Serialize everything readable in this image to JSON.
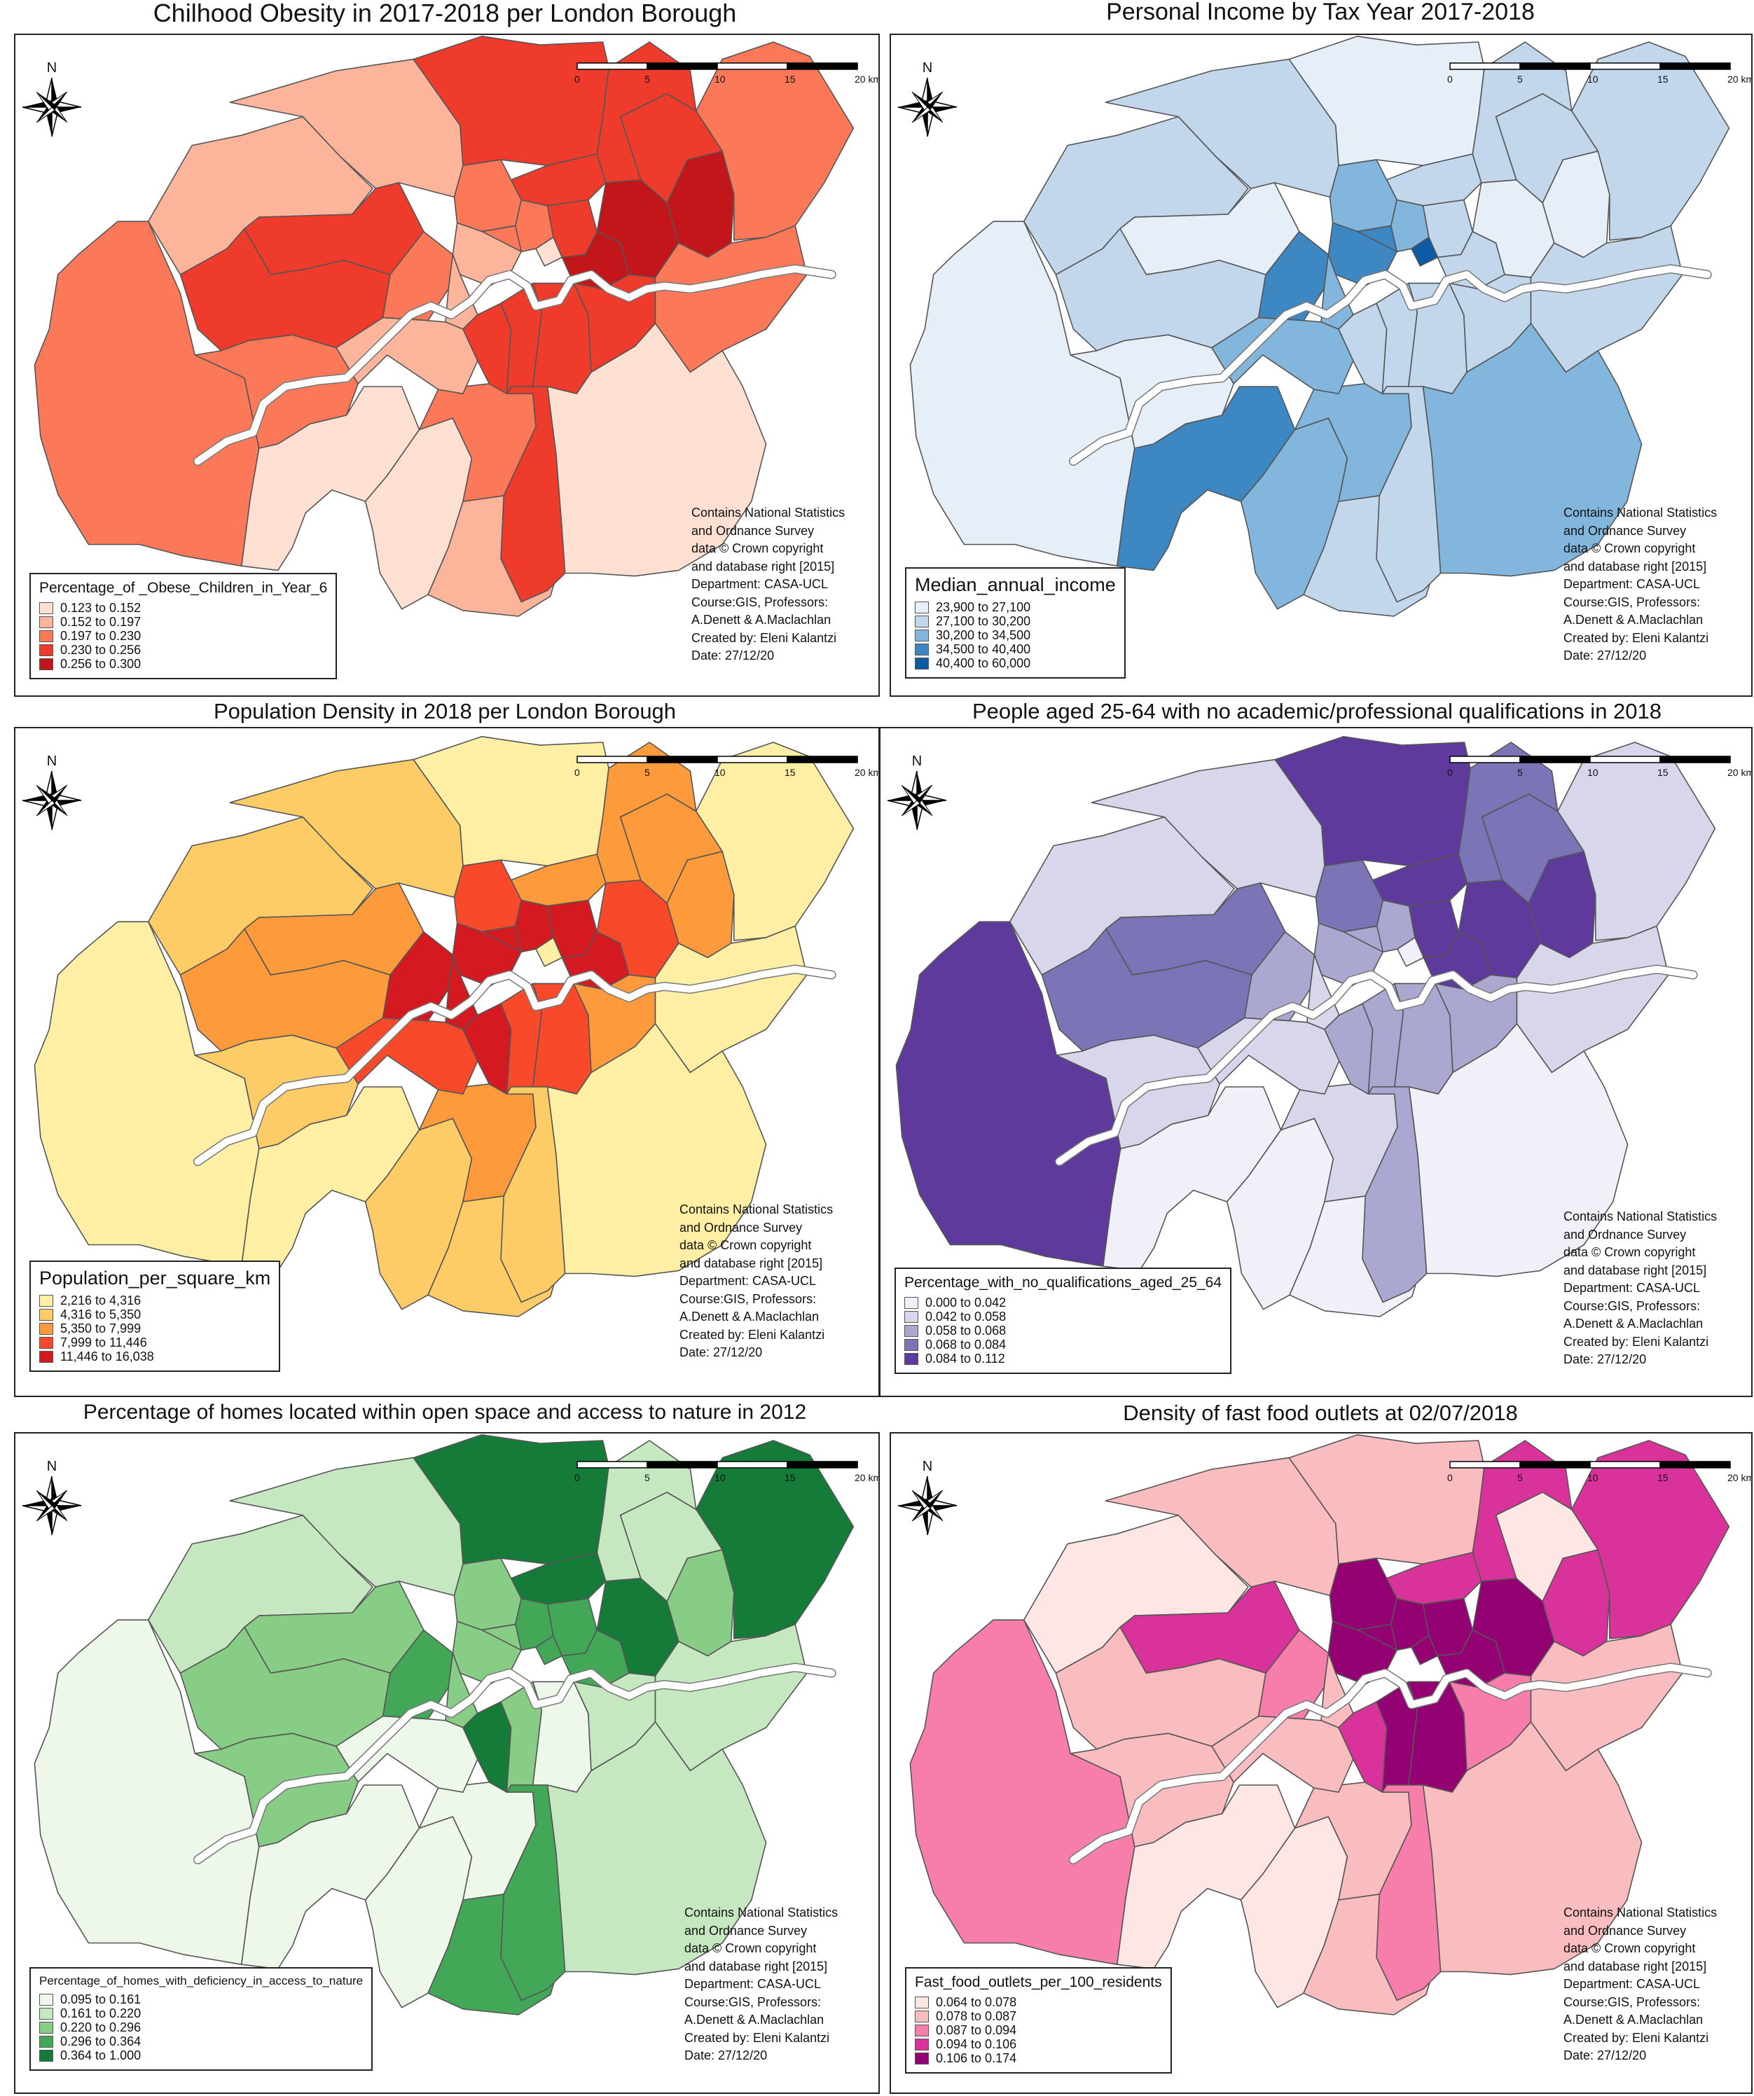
{
  "north_label": "N",
  "scale_labels": [
    "0",
    "5",
    "10",
    "15",
    "20 km"
  ],
  "credits": [
    "Contains National Statistics",
    "and Ordnance Survey",
    "data © Crown copyright",
    "and database right [2015]",
    "Department: CASA-UCL",
    "Course:GIS, Professors:",
    "A.Denett & A.Maclachlan",
    "Created by: Eleni Kalantzi",
    "Date: 27/12/20"
  ],
  "maps": [
    {
      "id": "obesity",
      "title": "Chilhood Obesity in 2017-2018 per London Borough",
      "legend_title": "Percentage_of _Obese_Children_in_Year_6",
      "classes": [
        {
          "label": "0.123 to 0.152",
          "color": "#fee0d2"
        },
        {
          "label": "0.152 to 0.197",
          "color": "#fcb49a"
        },
        {
          "label": "0.197 to 0.230",
          "color": "#fb7858"
        },
        {
          "label": "0.230 to 0.256",
          "color": "#ee3b2c"
        },
        {
          "label": "0.256 to 0.300",
          "color": "#c2161b"
        }
      ]
    },
    {
      "id": "income",
      "title": "Personal Income by Tax Year 2017-2018",
      "legend_title": "Median_annual_income",
      "classes": [
        {
          "label": "23,900 to 27,100",
          "color": "#e6eef8"
        },
        {
          "label": "27,100 to 30,200",
          "color": "#c3d7ec"
        },
        {
          "label": "30,200 to 34,500",
          "color": "#82b6dc"
        },
        {
          "label": "34,500 to 40,400",
          "color": "#3d87c3"
        },
        {
          "label": "40,400 to 60,000",
          "color": "#0d5aa5"
        }
      ]
    },
    {
      "id": "density",
      "title": "Population Density in 2018 per London Borough",
      "legend_title": "Population_per_square_km",
      "classes": [
        {
          "label": "2,216 to 4,316",
          "color": "#ffefa5"
        },
        {
          "label": "4,316 to 5,350",
          "color": "#fecc66"
        },
        {
          "label": "5,350 to 7,999",
          "color": "#fd9a3c"
        },
        {
          "label": "7,999 to 11,446",
          "color": "#f84a2a"
        },
        {
          "label": "11,446 to 16,038",
          "color": "#d41a20"
        }
      ]
    },
    {
      "id": "qualifications",
      "title": "People aged 25-64 with no academic/professional qualifications in 2018",
      "legend_title": "Percentage_with_no_qualifications_aged_25_64",
      "classes": [
        {
          "label": "0.000 to 0.042",
          "color": "#f1eff7"
        },
        {
          "label": "0.042 to 0.058",
          "color": "#d7d6ea"
        },
        {
          "label": "0.058 to 0.068",
          "color": "#aaa8d1"
        },
        {
          "label": "0.068 to 0.084",
          "color": "#7b75b8"
        },
        {
          "label": "0.084 to 0.112",
          "color": "#5f3a9d"
        }
      ]
    },
    {
      "id": "nature",
      "title": "Percentage of homes located within open space and access to nature in 2012",
      "legend_title": "Percentage_of_homes_with_deficiency_in_access_to_nature",
      "classes": [
        {
          "label": "0.095 to 0.161",
          "color": "#eef8ea"
        },
        {
          "label": "0.161 to 0.220",
          "color": "#c5e8c0"
        },
        {
          "label": "0.220 to 0.296",
          "color": "#88cd86"
        },
        {
          "label": "0.296 to 0.364",
          "color": "#42a858"
        },
        {
          "label": "0.364 to 1.000",
          "color": "#147b38"
        }
      ]
    },
    {
      "id": "fastfood",
      "title": "Density of fast food outlets at 02/07/2018",
      "legend_title": "Fast_food_outlets_per_100_residents",
      "classes": [
        {
          "label": "0.064 to 0.078",
          "color": "#fde6e3"
        },
        {
          "label": "0.078 to 0.087",
          "color": "#f9bcbf"
        },
        {
          "label": "0.087 to 0.094",
          "color": "#f77eaa"
        },
        {
          "label": "0.094 to 0.106",
          "color": "#d9339b"
        },
        {
          "label": "0.106 to 0.174",
          "color": "#930172"
        }
      ]
    }
  ]
}
